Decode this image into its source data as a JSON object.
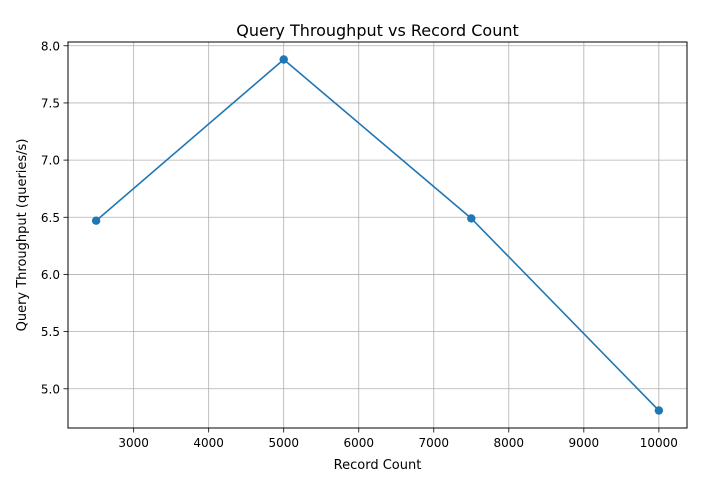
{
  "chart_data": {
    "type": "line",
    "title": "Query Throughput vs Record Count",
    "xlabel": "Record Count",
    "ylabel": "Query Throughput (queries/s)",
    "x": [
      2500,
      5000,
      7500,
      10000
    ],
    "series": [
      {
        "values": [
          6.47,
          7.88,
          6.49,
          4.81
        ],
        "color": "#1f77b4",
        "marker": "circle"
      }
    ],
    "xlim": [
      2125,
      10375
    ],
    "ylim": [
      4.657,
      8.033
    ],
    "xticks": [
      3000,
      4000,
      5000,
      6000,
      7000,
      8000,
      9000,
      10000
    ],
    "yticks": [
      5.0,
      5.5,
      6.0,
      6.5,
      7.0,
      7.5,
      8.0
    ],
    "xtick_labels": [
      "3000",
      "4000",
      "5000",
      "6000",
      "7000",
      "8000",
      "9000",
      "10000"
    ],
    "ytick_labels": [
      "5.0",
      "5.5",
      "6.0",
      "6.5",
      "7.0",
      "7.5",
      "8.0"
    ],
    "grid": true,
    "grid_color": "#b0b0b0",
    "axis_color": "#000000"
  }
}
